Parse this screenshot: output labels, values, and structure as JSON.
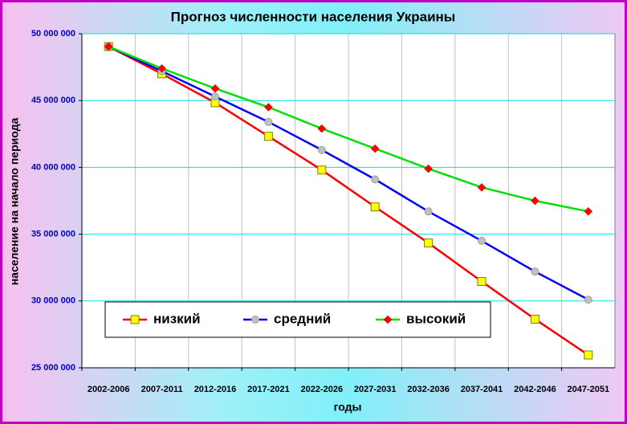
{
  "chart_data": {
    "type": "line",
    "title": "Прогноз численности населения Украины",
    "x_label": "годы",
    "y_label": "население на начало периода",
    "categories": [
      "2002-2006",
      "2007-2011",
      "2012-2016",
      "2017-2021",
      "2022-2026",
      "2027-2031",
      "2032-2036",
      "2037-2041",
      "2042-2046",
      "2047-2051"
    ],
    "series": [
      {
        "name": "низкий",
        "color": "#ff0000",
        "marker": "square",
        "marker_color": "#ffff00",
        "values": [
          49040000,
          47000000,
          44840000,
          42320000,
          39800000,
          37040000,
          34340000,
          31460000,
          28640000,
          25960000
        ]
      },
      {
        "name": "средний",
        "color": "#0000ff",
        "marker": "circle",
        "marker_color": "#c0c0c0",
        "values": [
          49040000,
          47200000,
          45300000,
          43400000,
          41300000,
          39100000,
          36700000,
          34500000,
          32200000,
          30100000
        ]
      },
      {
        "name": "высокий",
        "color": "#00e000",
        "marker": "diamond",
        "marker_color": "#ff0000",
        "values": [
          49040000,
          47400000,
          45900000,
          44500000,
          42900000,
          41400000,
          39900000,
          38500000,
          37500000,
          36700000
        ]
      }
    ],
    "ylim": [
      25000000,
      50000000
    ],
    "yticks": [
      {
        "value": 25000000,
        "label": "25 000 000"
      },
      {
        "value": 30000000,
        "label": "30 000 000"
      },
      {
        "value": 35000000,
        "label": "35 000 000"
      },
      {
        "value": 40000000,
        "label": "40 000 000"
      },
      {
        "value": 45000000,
        "label": "45 000 000"
      },
      {
        "value": 50000000,
        "label": "50 000 000"
      }
    ],
    "grid": true
  }
}
